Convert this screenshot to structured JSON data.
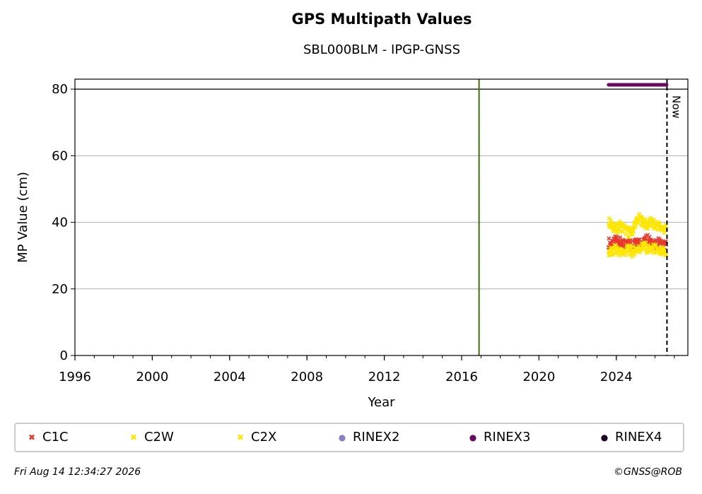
{
  "figure": {
    "title": "GPS Multipath Values",
    "subtitle": "SBL000BLM - IPGP-GNSS",
    "timestamp": "Fri Aug 14 12:34:27 2026",
    "credit": "©GNSS@ROB"
  },
  "chart_data": {
    "type": "scatter",
    "title": "GPS Multipath Values",
    "subtitle": "SBL000BLM - IPGP-GNSS",
    "xlabel": "Year",
    "ylabel": "MP Value (cm)",
    "xlim": [
      1996,
      2027.7
    ],
    "ylim": [
      0,
      83
    ],
    "x_ticks": [
      1996,
      2000,
      2004,
      2008,
      2012,
      2016,
      2020,
      2024
    ],
    "y_ticks": [
      0,
      20,
      40,
      60,
      80
    ],
    "grid": "horizontal",
    "legend_position": "bottom",
    "now_label": "Now",
    "now_x": 2026.62,
    "vertical_markers": [
      {
        "x": 2016.9,
        "style": "green solid with red dashed overlay"
      }
    ],
    "reference_line_y": 80,
    "series": [
      {
        "name": "C1C",
        "color": "#e8392c",
        "marker": "x",
        "x": [
          2023.6,
          2023.8,
          2024.0,
          2024.2,
          2024.4,
          2024.6,
          2024.8,
          2025.0,
          2025.2,
          2025.4,
          2025.6,
          2025.8,
          2026.0,
          2026.2,
          2026.4,
          2026.6
        ],
        "y": [
          34,
          33,
          35,
          34,
          33,
          34,
          33,
          35,
          34,
          34,
          35,
          34,
          33,
          34,
          33,
          33
        ]
      },
      {
        "name": "C2W",
        "color": "#ffe600",
        "marker": "x",
        "x": [
          2023.6,
          2023.8,
          2024.0,
          2024.2,
          2024.4,
          2024.6,
          2024.8,
          2025.0,
          2025.2,
          2025.4,
          2025.6,
          2025.8,
          2026.0,
          2026.2,
          2026.4,
          2026.6
        ],
        "y": [
          40,
          39,
          38,
          39,
          38,
          37,
          37,
          40,
          41,
          40,
          39,
          40,
          39,
          39,
          38,
          38
        ]
      },
      {
        "name": "C2X",
        "color": "#ffe600",
        "marker": "x",
        "x": [
          2023.6,
          2023.8,
          2024.0,
          2024.2,
          2024.4,
          2024.6,
          2024.8,
          2025.0,
          2025.2,
          2025.4,
          2025.6,
          2025.8,
          2026.0,
          2026.2,
          2026.4,
          2026.6
        ],
        "y": [
          31,
          31,
          32,
          31,
          31,
          32,
          31,
          32,
          32,
          33,
          32,
          32,
          32,
          31,
          31,
          31
        ]
      },
      {
        "name": "RINEX2",
        "color": "#8c7fbf",
        "marker": "dot",
        "x": [],
        "y": []
      },
      {
        "name": "RINEX3",
        "color": "#6a0a60",
        "marker": "dot",
        "x": [
          2023.6,
          2026.6
        ],
        "y": [
          81.3,
          81.3
        ]
      },
      {
        "name": "RINEX4",
        "color": "#1a0220",
        "marker": "dot",
        "x": [],
        "y": []
      }
    ]
  }
}
